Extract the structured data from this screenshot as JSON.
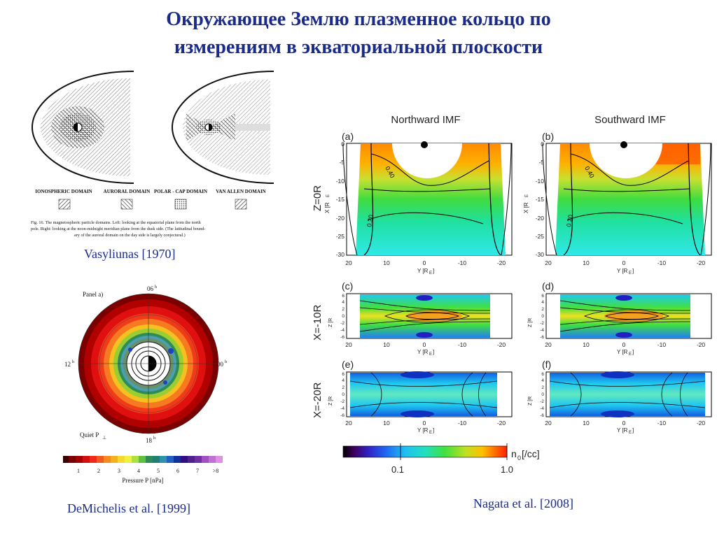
{
  "title": {
    "line1": "Окружающее Землю плазменное кольцо по",
    "line2": "измерениям в экваториальной плоскости"
  },
  "fig_vasyliunas": {
    "legend": [
      "IONOSPHERIC DOMAIN",
      "AURORAL DOMAIN",
      "POLAR - CAP DOMAIN",
      "VAN ALLEN DOMAIN"
    ],
    "caption_line1": "Fig. 16.   The magnetospheric particle domains. Left: looking at the equatorial plane from the north",
    "caption_line2": "pole. Right: looking at the noon-midnight meridian plane from the dusk side. (The latitudinal bound-",
    "caption_line3": "ary of the auroral domain on the day side is largely conjectural.)",
    "citation": "Vasyliunas [1970]"
  },
  "fig_demichelis": {
    "panel_label": "Panel a)",
    "hour_top": "06",
    "hour_left": "12",
    "hour_right": "00",
    "hour_bottom": "18",
    "hour_sup": "h",
    "quiet_label": "Quiet P",
    "quiet_sub": "⊥",
    "colorbar_ticks": [
      "1",
      "2",
      "3",
      "4",
      "5",
      "6",
      "7",
      ">8"
    ],
    "colorbar_label": "Pressure P [nPa]",
    "citation": "DeMichelis et al. [1999]"
  },
  "fig_nagata": {
    "col_titles": [
      "Northward IMF",
      "Southward IMF"
    ],
    "panel_letters": [
      "(a)",
      "(b)",
      "(c)",
      "(d)",
      "(e)",
      "(f)"
    ],
    "row_labels": [
      "Z=0R",
      "X=-10R",
      "X=-20R"
    ],
    "row_label_sub": "E",
    "x_axis_label": "X [R",
    "z_axis_label": "Z [R",
    "y_axis_label": "Y [R",
    "axis_sub": "E",
    "y_ticks": [
      "20",
      "10",
      "0",
      "-10",
      "-20"
    ],
    "x_ticks_top": [
      "0",
      "-5",
      "-10",
      "-15",
      "-20",
      "-25",
      "-30"
    ],
    "z_ticks": [
      "6",
      "4",
      "2",
      "0",
      "-2",
      "-4",
      "-6"
    ],
    "contour_labels": [
      "0.40",
      "0.20"
    ],
    "colorbar_unit": "n",
    "colorbar_unit_sub": "0",
    "colorbar_unit_rest": " [/cc]",
    "colorbar_ticks": [
      "0.1",
      "1.0"
    ],
    "citation": "Nagata et al. [2008]"
  }
}
